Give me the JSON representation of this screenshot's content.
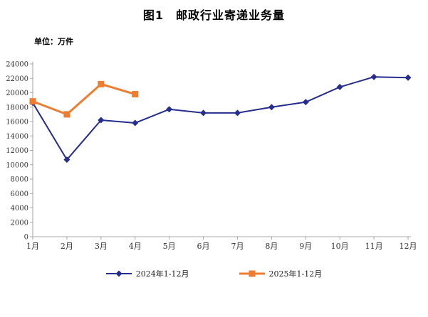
{
  "figure": {
    "title": "图1　邮政行业寄递业务量",
    "unit_label": "单位：万件"
  },
  "colors": {
    "series_2024": "#252d8e",
    "series_2025": "#ed7d31",
    "axis": "#a6a6a6",
    "tick_label": "#333333"
  },
  "chart_data": {
    "type": "line",
    "title": "图1　邮政行业寄递业务量",
    "xlabel": "",
    "ylabel": "单位：万件",
    "categories": [
      "1月",
      "2月",
      "3月",
      "4月",
      "5月",
      "6月",
      "7月",
      "8月",
      "9月",
      "10月",
      "11月",
      "12月"
    ],
    "series": [
      {
        "name": "2024年1-12月",
        "marker": "diamond",
        "color": "#252d8e",
        "values": [
          18600,
          10700,
          16200,
          15800,
          17700,
          17200,
          17200,
          18000,
          18700,
          20800,
          22200,
          22100
        ]
      },
      {
        "name": "2025年1-12月",
        "marker": "square",
        "color": "#ed7d31",
        "values": [
          18800,
          17000,
          21200,
          19800
        ]
      }
    ],
    "ylim": [
      0,
      24000
    ],
    "ytick_step": 2000,
    "grid": false,
    "legend_position": "bottom"
  }
}
